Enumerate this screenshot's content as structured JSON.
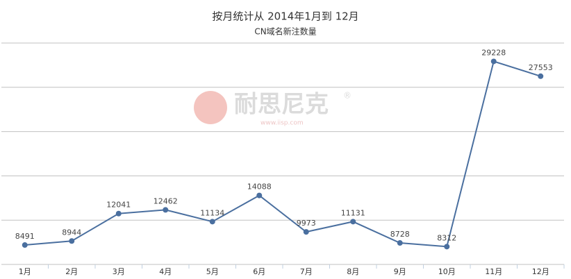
{
  "chart_data": {
    "type": "line",
    "title": "按月统计从 2014年1月到 12月",
    "subtitle": "CN域名新注数量",
    "categories": [
      "1月",
      "2月",
      "3月",
      "4月",
      "5月",
      "6月",
      "7月",
      "8月",
      "9月",
      "10月",
      "11月",
      "12月"
    ],
    "series": [
      {
        "name": "CN域名新注数量",
        "color": "#4a6f9f",
        "values": [
          8491,
          8944,
          12041,
          12462,
          11134,
          14088,
          9973,
          11131,
          8728,
          8312,
          29228,
          27553
        ]
      }
    ],
    "ylim": [
      6300,
      31300
    ],
    "yticks": [
      6300,
      11300,
      16300,
      21300,
      26300,
      31300
    ],
    "grid": true,
    "legend": false
  },
  "watermark": {
    "brand": "耐思尼克",
    "url": "www.iisp.com",
    "mark": "®"
  }
}
